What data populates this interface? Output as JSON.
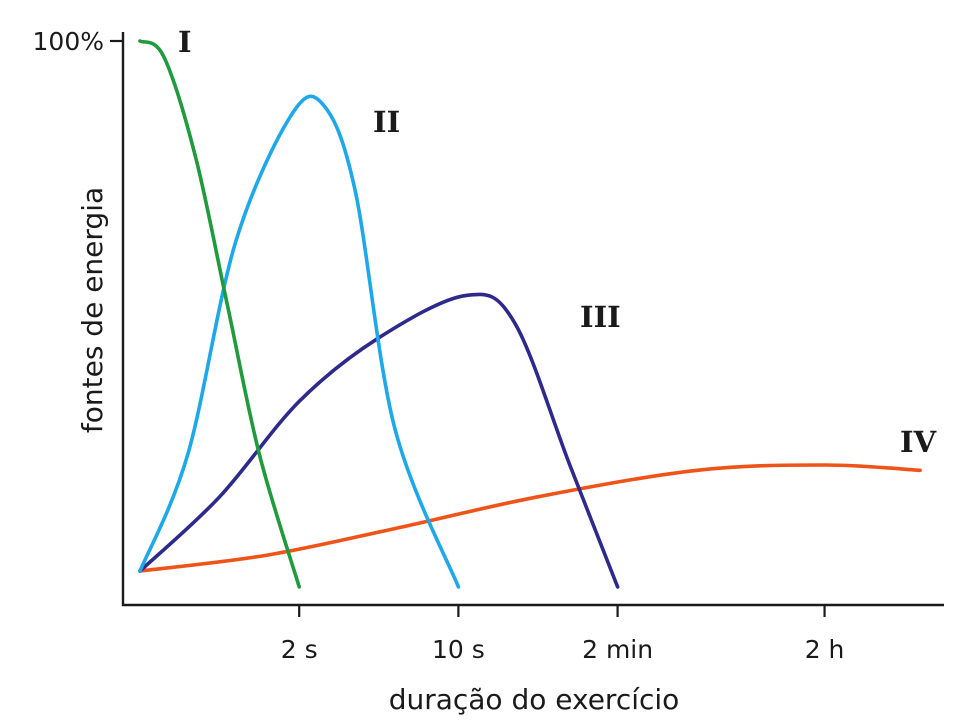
{
  "chart_data": {
    "type": "line",
    "title": "",
    "xlabel": "duração do exercício",
    "ylabel": "fontes de energia",
    "y_tick_labels": [
      "100%"
    ],
    "x_ticks": [
      {
        "label": "2 s",
        "value": 1
      },
      {
        "label": "10 s",
        "value": 2
      },
      {
        "label": "2 min",
        "value": 3
      },
      {
        "label": "2 h",
        "value": 4.3
      }
    ],
    "xlim": [
      0,
      5
    ],
    "ylim": [
      0,
      100
    ],
    "grid": false,
    "legend": "none",
    "series": [
      {
        "name": "I",
        "color": "#1f9a3c",
        "x": [
          0,
          0.15,
          0.35,
          0.55,
          0.75,
          1.0
        ],
        "y": [
          100,
          97,
          78,
          50,
          22,
          -3
        ]
      },
      {
        "name": "II",
        "color": "#1ea8e8",
        "x": [
          0,
          0.3,
          0.6,
          0.95,
          1.15,
          1.35,
          1.6,
          2.0
        ],
        "y": [
          0,
          22,
          62,
          86,
          88,
          72,
          27,
          -3
        ]
      },
      {
        "name": "III",
        "color": "#2d2a8c",
        "x": [
          0,
          0.5,
          1.0,
          1.5,
          2.05,
          2.35,
          2.7,
          3.0
        ],
        "y": [
          0,
          14,
          32,
          44,
          52,
          47,
          20,
          -3
        ]
      },
      {
        "name": "IV",
        "color": "#ee5318",
        "x": [
          0,
          0.8,
          1.6,
          2.5,
          3.5,
          4.3,
          4.9
        ],
        "y": [
          0,
          3,
          8,
          14,
          19,
          20,
          19
        ]
      }
    ]
  }
}
